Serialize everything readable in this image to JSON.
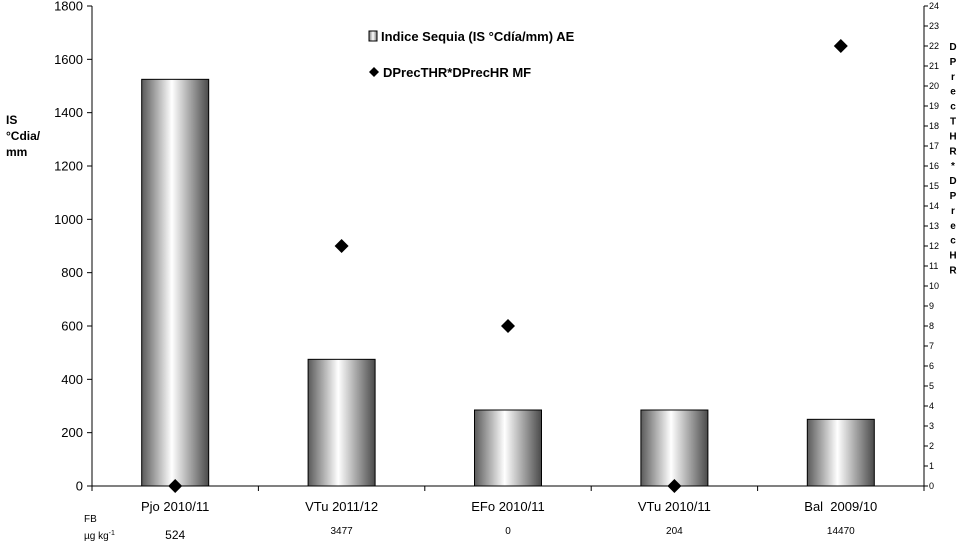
{
  "chart_data": {
    "type": "bar",
    "categories": [
      "Pjo 2010/11",
      "VTu 2011/12",
      "EFo 2010/11",
      "VTu 2010/11",
      "Bal  2009/10"
    ],
    "series": [
      {
        "name": "Indice Sequia (IS °Cdía/mm) AE",
        "type": "bar",
        "axis": "left",
        "values": [
          1525,
          475,
          285,
          285,
          250
        ]
      },
      {
        "name": "DPrecTHR*DPrecHR MF",
        "type": "scatter",
        "axis": "right",
        "marker": "diamond",
        "values": [
          0,
          12,
          8,
          0,
          22
        ]
      }
    ],
    "ylabel_lines": [
      "IS",
      "°Cdia/",
      "mm"
    ],
    "y2label": "DPrecTHR*DPrecHR",
    "ylim": [
      0,
      1800
    ],
    "yticks": [
      0,
      200,
      400,
      600,
      800,
      1000,
      1200,
      1400,
      1600,
      1800
    ],
    "y2lim": [
      0,
      24
    ],
    "y2ticks": [
      0,
      1,
      2,
      3,
      4,
      5,
      6,
      7,
      8,
      9,
      10,
      11,
      12,
      13,
      14,
      15,
      16,
      17,
      18,
      19,
      20,
      21,
      22,
      23,
      24
    ],
    "legend_position": "top-center",
    "grid": false,
    "fb_label_line1": "FB",
    "fb_label_line2": "µg kg",
    "fb_label_sup": "-1",
    "fb_values": [
      "524",
      "3477",
      "0",
      "204",
      "14470"
    ]
  }
}
